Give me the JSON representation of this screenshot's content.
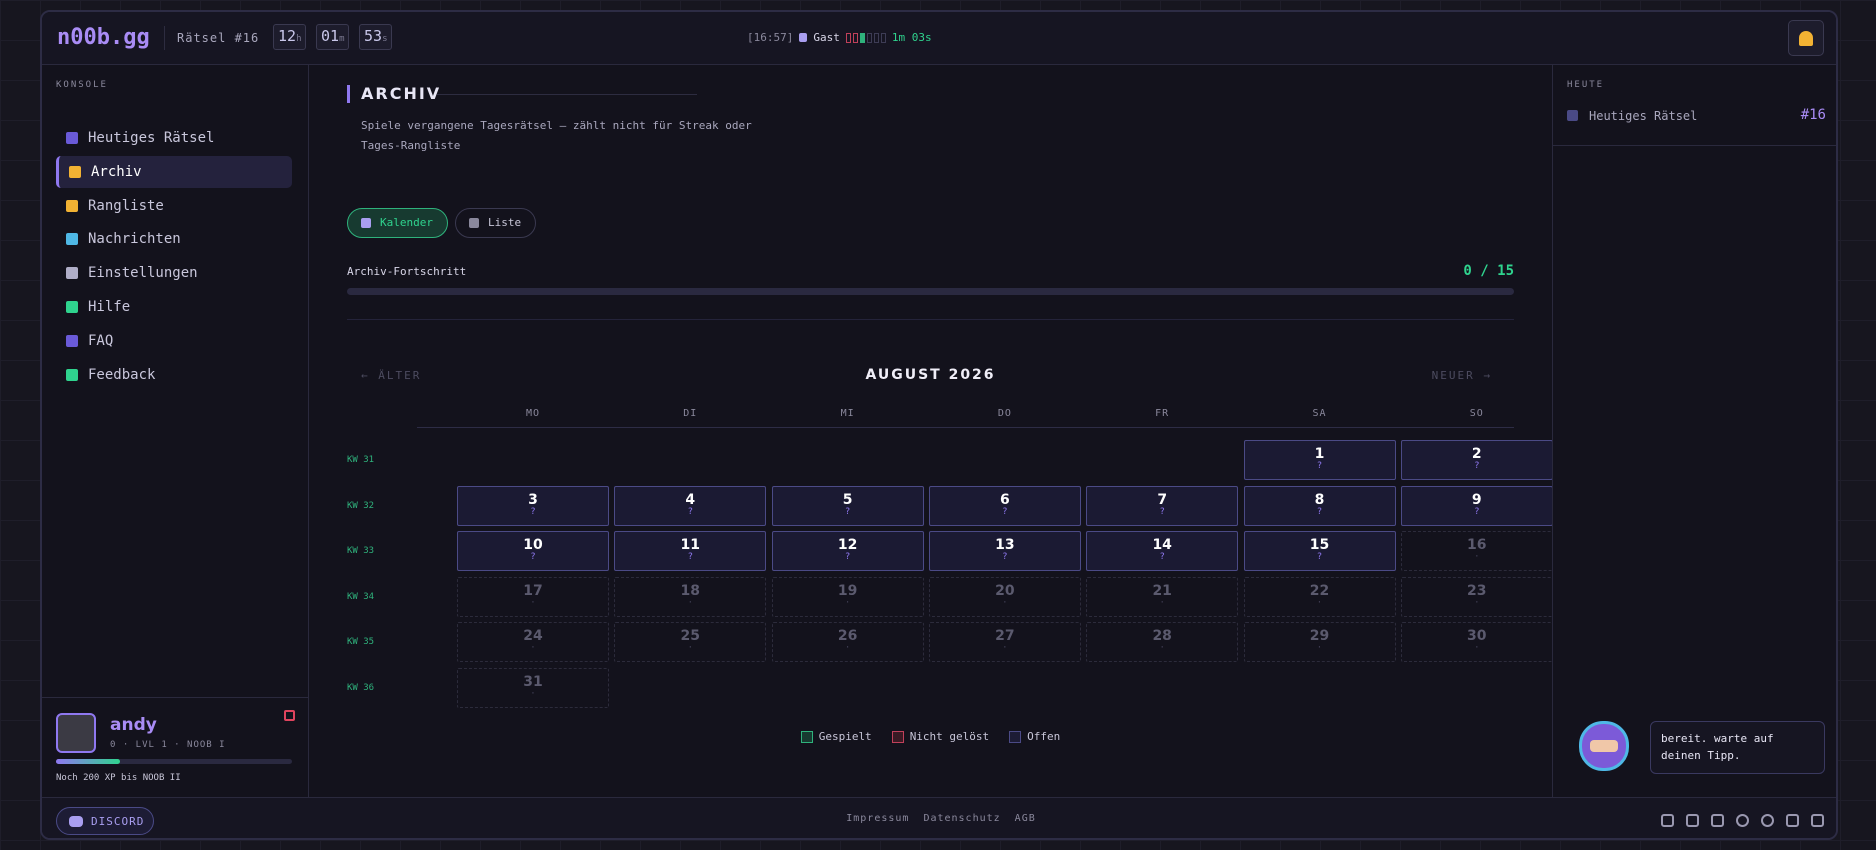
{
  "header": {
    "logo": "n00b.gg",
    "puzzle": "Rätsel #16",
    "timer": [
      {
        "value": "12",
        "unit": "h"
      },
      {
        "value": "01",
        "unit": "m"
      },
      {
        "value": "53",
        "unit": "s"
      }
    ],
    "status": {
      "time": "[16:57]",
      "user": "Gast",
      "countdown": "1m 03s"
    }
  },
  "sidebar": {
    "section": "KONSOLE",
    "active": 1,
    "items": [
      "Heutiges Rätsel",
      "Archiv",
      "Rangliste",
      "Nachrichten",
      "Einstellungen",
      "Hilfe",
      "FAQ",
      "Feedback"
    ],
    "profile": {
      "name": "andy",
      "stats": "0 · LVL 1 · NOOB I",
      "xp_note": "Noch 200 XP bis NOOB II"
    }
  },
  "main": {
    "title": "ARCHIV",
    "description": "Spiele vergangene Tagesrätsel — zählt nicht für Streak oder Tages-Rangliste",
    "tabs": [
      "Kalender",
      "Liste"
    ],
    "active_tab": 0,
    "progress": {
      "label": "Archiv-Fortschritt",
      "text": "0 / 15"
    },
    "calendar": {
      "prev": "← ÄLTER",
      "next": "NEUER →",
      "month": "AUGUST 2026",
      "weekdays": [
        "MO",
        "DI",
        "MI",
        "DO",
        "FR",
        "SA",
        "SO"
      ],
      "weeks": [
        {
          "label": "KW 31",
          "days": [
            null,
            null,
            null,
            null,
            null,
            {
              "day": 1,
              "mark": "?",
              "state": "open"
            },
            {
              "day": 2,
              "mark": "?",
              "state": "open"
            }
          ]
        },
        {
          "label": "KW 32",
          "days": [
            {
              "day": 3,
              "mark": "?",
              "state": "open"
            },
            {
              "day": 4,
              "mark": "?",
              "state": "open"
            },
            {
              "day": 5,
              "mark": "?",
              "state": "open"
            },
            {
              "day": 6,
              "mark": "?",
              "state": "open"
            },
            {
              "day": 7,
              "mark": "?",
              "state": "open"
            },
            {
              "day": 8,
              "mark": "?",
              "state": "open"
            },
            {
              "day": 9,
              "mark": "?",
              "state": "open"
            }
          ]
        },
        {
          "label": "KW 33",
          "days": [
            {
              "day": 10,
              "mark": "?",
              "state": "open"
            },
            {
              "day": 11,
              "mark": "?",
              "state": "open"
            },
            {
              "day": 12,
              "mark": "?",
              "state": "open"
            },
            {
              "day": 13,
              "mark": "?",
              "state": "open"
            },
            {
              "day": 14,
              "mark": "?",
              "state": "open"
            },
            {
              "day": 15,
              "mark": "?",
              "state": "open"
            },
            {
              "day": 16,
              "mark": "·",
              "state": "future"
            }
          ]
        },
        {
          "label": "KW 34",
          "days": [
            {
              "day": 17,
              "mark": "·",
              "state": "future"
            },
            {
              "day": 18,
              "mark": "·",
              "state": "future"
            },
            {
              "day": 19,
              "mark": "·",
              "state": "future"
            },
            {
              "day": 20,
              "mark": "·",
              "state": "future"
            },
            {
              "day": 21,
              "mark": "·",
              "state": "future"
            },
            {
              "day": 22,
              "mark": "·",
              "state": "future"
            },
            {
              "day": 23,
              "mark": "·",
              "state": "future"
            }
          ]
        },
        {
          "label": "KW 35",
          "days": [
            {
              "day": 24,
              "mark": "·",
              "state": "future"
            },
            {
              "day": 25,
              "mark": "·",
              "state": "future"
            },
            {
              "day": 26,
              "mark": "·",
              "state": "future"
            },
            {
              "day": 27,
              "mark": "·",
              "state": "future"
            },
            {
              "day": 28,
              "mark": "·",
              "state": "future"
            },
            {
              "day": 29,
              "mark": "·",
              "state": "future"
            },
            {
              "day": 30,
              "mark": "·",
              "state": "future"
            }
          ]
        },
        {
          "label": "KW 36",
          "days": [
            {
              "day": 31,
              "mark": "·",
              "state": "future"
            },
            null,
            null,
            null,
            null,
            null,
            null
          ]
        }
      ],
      "legend": [
        "Gespielt",
        "Nicht gelöst",
        "Offen"
      ]
    }
  },
  "right_panel": {
    "section": "HEUTE",
    "item": "Heutiges Rätsel",
    "number": "#16",
    "speech": "bereit. warte auf deinen Tipp."
  },
  "footer": {
    "discord": "DISCORD",
    "links": [
      "Impressum",
      "Datenschutz",
      "AGB"
    ]
  }
}
